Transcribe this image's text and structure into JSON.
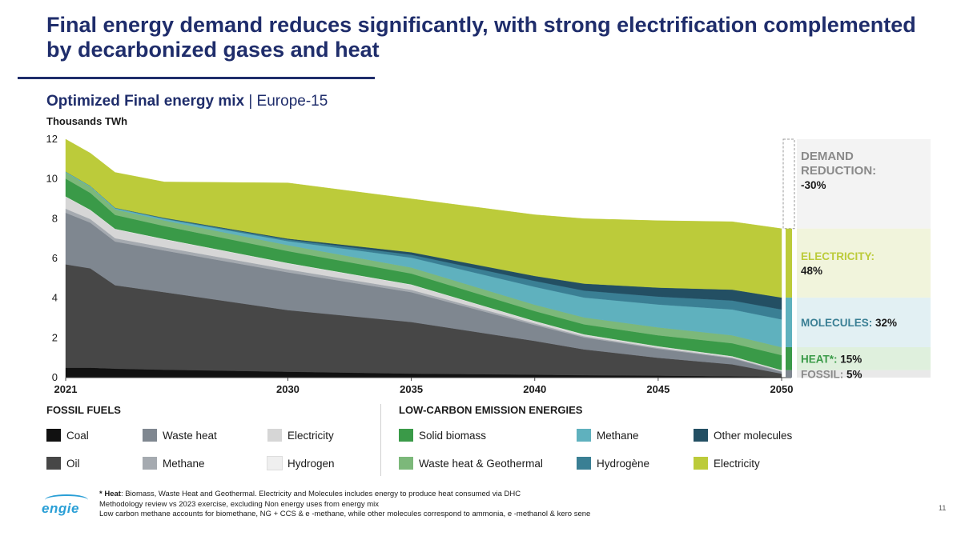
{
  "slide": {
    "title": "Final energy demand reduces significantly, with strong electrification complemented\nby decarbonized gases and heat",
    "chart_title_bold": "Optimized Final energy mix",
    "chart_title_rest": " | Europe-15",
    "units": "Thousands TWh",
    "page_number": "11",
    "logo": "engie",
    "footnote_heat_label": "* Heat",
    "footnote_heat_text": ": Biomass, Waste Heat and Geothermal. Electricity and Molecules includes energy to produce heat consumed via DHC",
    "footnote_2": "Methodology review vs 2023 exercise, excluding Non energy uses from energy mix",
    "footnote_3": "Low carbon methane accounts for biomethane, NG + CCS & e  -methane, while other molecules correspond to ammonia, e  -methanol & kero sene"
  },
  "colors": {
    "navy": "#1f2d6b",
    "coal": "#111111",
    "oil": "#474747",
    "fossil_waste_heat": "#7f8790",
    "fossil_methane": "#a5aab0",
    "fossil_electricity": "#d6d6d6",
    "hydrogen": "#efefef",
    "solid_biomass": "#3a9a48",
    "waste_heat_geo": "#7cb87a",
    "methane": "#5fb1be",
    "hydrogene": "#3a7f94",
    "other_molecules": "#234f63",
    "electricity": "#bccb3a"
  },
  "legend": {
    "fossil_title": "FOSSIL FUELS",
    "low_carbon_title": "LOW-CARBON EMISSION ENERGIES",
    "items": [
      {
        "label": "Coal",
        "color": "#111111"
      },
      {
        "label": "Waste heat",
        "color": "#7f8790"
      },
      {
        "label": "Electricity",
        "color": "#d6d6d6"
      },
      {
        "label": "Oil",
        "color": "#474747"
      },
      {
        "label": "Methane",
        "color": "#a5aab0"
      },
      {
        "label": "Hydrogen",
        "color": "#efefef"
      },
      {
        "label": "Solid biomass",
        "color": "#3a9a48"
      },
      {
        "label": "Methane",
        "color": "#5fb1be"
      },
      {
        "label": "Other molecules",
        "color": "#234f63"
      },
      {
        "label": "Waste heat & Geothermal",
        "color": "#7cb87a"
      },
      {
        "label": "Hydrogène",
        "color": "#3a7f94"
      },
      {
        "label": "Electricity",
        "color": "#bccb3a"
      }
    ]
  },
  "chart_data": {
    "type": "area",
    "stacked": true,
    "x": [
      2021,
      2022,
      2023,
      2025,
      2030,
      2035,
      2040,
      2042,
      2045,
      2048,
      2050
    ],
    "xticks": [
      2021,
      2030,
      2035,
      2040,
      2045,
      2050
    ],
    "yticks": [
      0,
      2,
      4,
      6,
      8,
      10,
      12
    ],
    "ylim": [
      0,
      12
    ],
    "ylabel": "Thousands TWh",
    "series": [
      {
        "name": "Coal",
        "values": [
          0.5,
          0.5,
          0.45,
          0.4,
          0.3,
          0.2,
          0.15,
          0.12,
          0.1,
          0.07,
          0.05
        ]
      },
      {
        "name": "Oil",
        "values": [
          5.2,
          5.0,
          4.2,
          3.9,
          3.1,
          2.6,
          1.7,
          1.3,
          0.9,
          0.6,
          0.15
        ]
      },
      {
        "name": "Waste heat",
        "values": [
          2.6,
          2.3,
          2.2,
          2.1,
          1.9,
          1.5,
          0.8,
          0.6,
          0.45,
          0.3,
          0.1
        ]
      },
      {
        "name": "Methane",
        "values": [
          0.2,
          0.18,
          0.17,
          0.16,
          0.15,
          0.12,
          0.08,
          0.06,
          0.05,
          0.04,
          0.03
        ]
      },
      {
        "name": "Electricity",
        "values": [
          0.6,
          0.45,
          0.45,
          0.4,
          0.3,
          0.25,
          0.1,
          0.08,
          0.06,
          0.05,
          0.03
        ]
      },
      {
        "name": "Hydrogen",
        "values": [
          0.02,
          0.02,
          0.02,
          0.02,
          0.02,
          0.02,
          0.02,
          0.02,
          0.02,
          0.02,
          0.02
        ]
      },
      {
        "name": "Solid biomass",
        "values": [
          0.9,
          0.85,
          0.7,
          0.65,
          0.6,
          0.55,
          0.5,
          0.5,
          0.55,
          0.65,
          0.75
        ]
      },
      {
        "name": "Waste heat & Geothermal",
        "values": [
          0.3,
          0.3,
          0.28,
          0.28,
          0.3,
          0.3,
          0.32,
          0.35,
          0.4,
          0.4,
          0.4
        ]
      },
      {
        "name": "Methane",
        "values": [
          0.05,
          0.05,
          0.06,
          0.08,
          0.2,
          0.5,
          0.9,
          1.0,
          1.15,
          1.3,
          1.4
        ]
      },
      {
        "name": "Hydrogène",
        "values": [
          0.0,
          0.0,
          0.02,
          0.03,
          0.08,
          0.15,
          0.3,
          0.35,
          0.4,
          0.45,
          0.5
        ]
      },
      {
        "name": "Other molecules",
        "values": [
          0.0,
          0.0,
          0.0,
          0.02,
          0.05,
          0.12,
          0.25,
          0.35,
          0.45,
          0.55,
          0.6
        ]
      },
      {
        "name": "Electricity",
        "values": [
          1.63,
          1.65,
          1.78,
          1.81,
          2.8,
          2.69,
          3.08,
          3.27,
          3.37,
          3.42,
          3.47
        ]
      }
    ],
    "side_labels": [
      {
        "label": "DEMAND REDUCTION:",
        "value": "-30%"
      },
      {
        "label": "ELECTRICITY:",
        "value": "48%"
      },
      {
        "label": "MOLECULES:",
        "value": "32%"
      },
      {
        "label": "HEAT*:",
        "value": "15%"
      },
      {
        "label": "FOSSIL:",
        "value": "5%"
      }
    ]
  }
}
